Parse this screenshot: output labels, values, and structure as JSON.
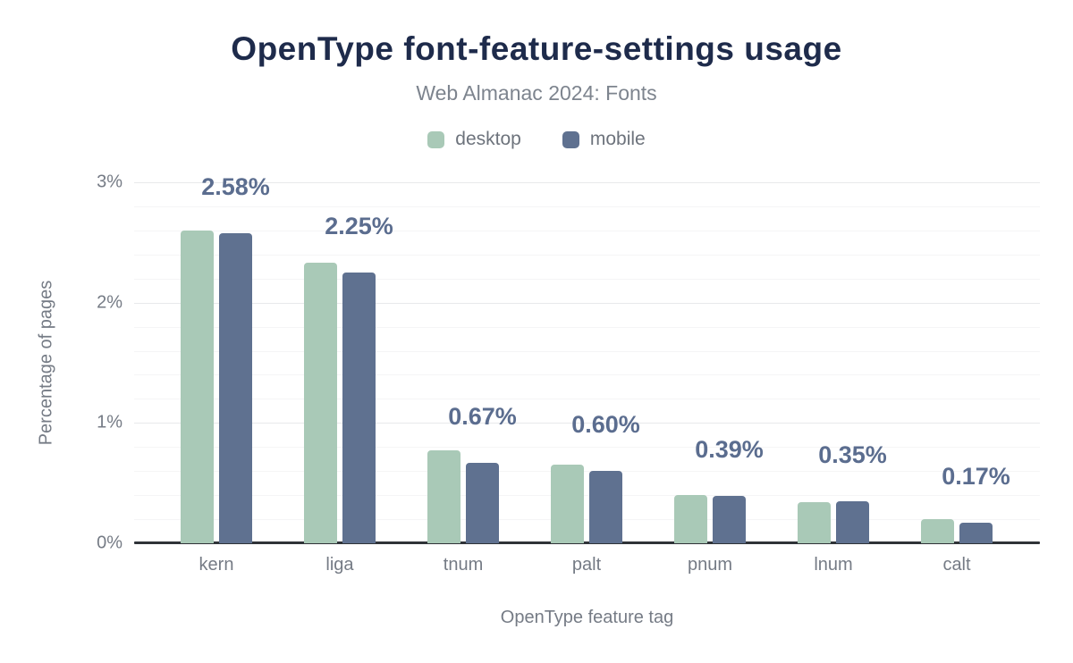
{
  "header": {
    "title": "OpenType font-feature-settings usage",
    "subtitle": "Web Almanac 2024: Fonts"
  },
  "chart_data": {
    "type": "bar",
    "title": "OpenType font-feature-settings usage",
    "subtitle": "Web Almanac 2024: Fonts",
    "xlabel": "OpenType feature tag",
    "ylabel": "Percentage of pages",
    "categories": [
      "kern",
      "liga",
      "tnum",
      "palt",
      "pnum",
      "lnum",
      "calt"
    ],
    "series": [
      {
        "name": "desktop",
        "color": "#a9c9b7",
        "values": [
          2.6,
          2.33,
          0.77,
          0.65,
          0.4,
          0.34,
          0.2
        ]
      },
      {
        "name": "mobile",
        "color": "#5f7190",
        "values": [
          2.58,
          2.25,
          0.67,
          0.6,
          0.39,
          0.35,
          0.17
        ]
      }
    ],
    "bar_labels": [
      "2.58%",
      "2.25%",
      "0.67%",
      "0.60%",
      "0.39%",
      "0.35%",
      "0.17%"
    ],
    "bar_labels_refer_to": "mobile",
    "ylim": [
      0,
      3
    ],
    "yticks": [
      {
        "value": 0,
        "label": "0%"
      },
      {
        "value": 1,
        "label": "1%"
      },
      {
        "value": 2,
        "label": "2%"
      },
      {
        "value": 3,
        "label": "3%"
      }
    ],
    "grid": true,
    "minor_grid_step": 0.2,
    "legend_position": "top"
  },
  "colors": {
    "title": "#1e2b4b",
    "subtitle": "#7d848e",
    "axis_text": "#757b85",
    "bar_label": "#5b6d8f",
    "axis_line": "#2f3338",
    "grid_major": "#e8e9eb",
    "grid_minor": "#f5f5f6",
    "background": "#ffffff"
  }
}
